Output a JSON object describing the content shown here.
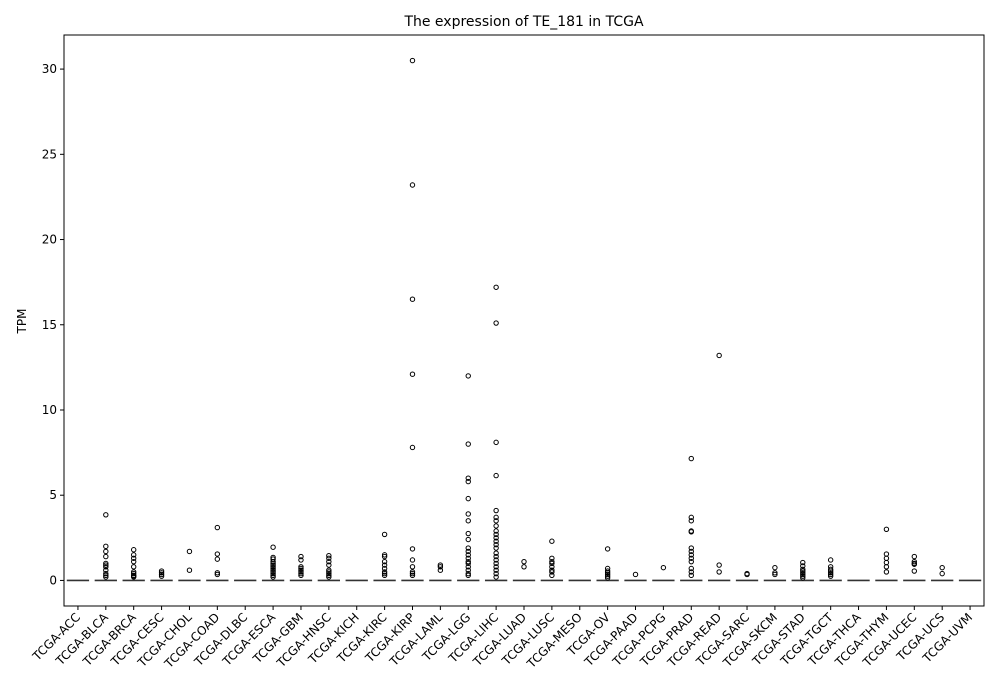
{
  "chart_data": {
    "type": "box",
    "title": "The expression of TE_181 in TCGA",
    "xlabel": "",
    "ylabel": "TPM",
    "ylim": [
      -1.5,
      32
    ],
    "yticks": [
      0,
      5,
      10,
      15,
      20,
      25,
      30
    ],
    "grid": false,
    "categories": [
      "TCGA-ACC",
      "TCGA-BLCA",
      "TCGA-BRCA",
      "TCGA-CESC",
      "TCGA-CHOL",
      "TCGA-COAD",
      "TCGA-DLBC",
      "TCGA-ESCA",
      "TCGA-GBM",
      "TCGA-HNSC",
      "TCGA-KICH",
      "TCGA-KIRC",
      "TCGA-KIRP",
      "TCGA-LAML",
      "TCGA-LGG",
      "TCGA-LIHC",
      "TCGA-LUAD",
      "TCGA-LUSC",
      "TCGA-MESO",
      "TCGA-OV",
      "TCGA-PAAD",
      "TCGA-PCPG",
      "TCGA-PRAD",
      "TCGA-READ",
      "TCGA-SARC",
      "TCGA-SKCM",
      "TCGA-STAD",
      "TCGA-TGCT",
      "TCGA-THCA",
      "TCGA-THYM",
      "TCGA-UCEC",
      "TCGA-UCS",
      "TCGA-UVM"
    ],
    "median": [
      0,
      0,
      0,
      0,
      0,
      0,
      0,
      0,
      0,
      0,
      0,
      0,
      0,
      0,
      0,
      0,
      0,
      0,
      0,
      0,
      0,
      0,
      0,
      0,
      0,
      0,
      0,
      0,
      0,
      0,
      0,
      0,
      0
    ],
    "outliers": [
      [],
      [
        3.85,
        2.0,
        1.7,
        1.4,
        1.0,
        0.9,
        0.8,
        0.6,
        0.4,
        0.3,
        0.2
      ],
      [
        1.8,
        1.5,
        1.3,
        1.1,
        0.8,
        0.5,
        0.4,
        0.3,
        0.25,
        0.2
      ],
      [
        0.55,
        0.45,
        0.35,
        0.25
      ],
      [
        1.7,
        0.6
      ],
      [
        3.1,
        1.55,
        1.25,
        0.45,
        0.35
      ],
      [],
      [
        1.95,
        1.35,
        1.25,
        1.1,
        1.0,
        0.9,
        0.8,
        0.7,
        0.6,
        0.5,
        0.4,
        0.3,
        0.2
      ],
      [
        1.4,
        1.2,
        0.8,
        0.7,
        0.6,
        0.5,
        0.4,
        0.3
      ],
      [
        1.45,
        1.3,
        1.1,
        0.9,
        0.6,
        0.5,
        0.4,
        0.3,
        0.2
      ],
      [],
      [
        2.7,
        1.5,
        1.4,
        1.1,
        0.9,
        0.7,
        0.5,
        0.4,
        0.3
      ],
      [
        30.5,
        23.2,
        16.5,
        12.1,
        7.8,
        1.85,
        1.2,
        0.8,
        0.5,
        0.4,
        0.3
      ],
      [
        0.9,
        0.8,
        0.6
      ],
      [
        12.0,
        8.0,
        6.0,
        5.8,
        4.8,
        3.9,
        3.5,
        2.75,
        2.4,
        1.9,
        1.7,
        1.5,
        1.3,
        1.1,
        1.0,
        0.8,
        0.6,
        0.4,
        0.3
      ],
      [
        17.2,
        15.1,
        8.1,
        6.15,
        4.1,
        3.7,
        3.5,
        3.2,
        2.9,
        2.7,
        2.5,
        2.3,
        2.1,
        1.9,
        1.6,
        1.4,
        1.2,
        1.0,
        0.8,
        0.6,
        0.4,
        0.2
      ],
      [
        1.1,
        0.8
      ],
      [
        2.3,
        1.3,
        1.1,
        1.0,
        0.8,
        0.6,
        0.5,
        0.3
      ],
      [],
      [
        1.85,
        0.7,
        0.55,
        0.45,
        0.35,
        0.25,
        0.15
      ],
      [
        0.35
      ],
      [
        0.75
      ],
      [
        7.15,
        3.7,
        3.5,
        2.9,
        2.85,
        1.9,
        1.7,
        1.5,
        1.3,
        1.1,
        0.7,
        0.5,
        0.3
      ],
      [
        13.2,
        0.9,
        0.5
      ],
      [
        0.4,
        0.35
      ],
      [
        0.75,
        0.45,
        0.35
      ],
      [
        1.05,
        0.85,
        0.65,
        0.55,
        0.45,
        0.35,
        0.25,
        0.15
      ],
      [
        1.2,
        0.8,
        0.65,
        0.55,
        0.45,
        0.35,
        0.25
      ],
      [],
      [
        3.0,
        1.55,
        1.3,
        1.05,
        0.8,
        0.5
      ],
      [
        1.4,
        1.1,
        1.0,
        0.95,
        0.55
      ],
      [
        0.75,
        0.4
      ],
      []
    ]
  }
}
